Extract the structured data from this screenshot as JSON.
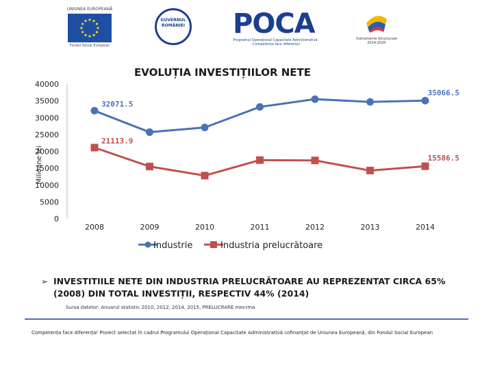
{
  "logos": {
    "eu_top": "UNIUNEA EUROPEANĂ",
    "eu_bottom": "Fondul Social European",
    "gov": "GUVERNUL ROMÂNIEI",
    "poca": "POCA",
    "poca_tagline": "Programul Operațional Capacitate Administrativă · Competența face diferența!",
    "ig": "Instrumente Structurale 2014-2020"
  },
  "colors": {
    "industrie": "#4a72b8",
    "prelucratoare": "#c0504d"
  },
  "chart_data": {
    "type": "line",
    "title": "EVOLUȚIA INVESTIȚIILOR NETE",
    "ylabel": "Milioane lei",
    "xlabel": "",
    "ylim": [
      0,
      40000
    ],
    "yticks": [
      0,
      5000,
      10000,
      15000,
      20000,
      25000,
      30000,
      35000,
      40000
    ],
    "categories": [
      "2008",
      "2009",
      "2010",
      "2011",
      "2012",
      "2013",
      "2014"
    ],
    "series": [
      {
        "name": "Industrie",
        "marker": "circle",
        "values": [
          32071.5,
          25700,
          27100,
          33200,
          35500,
          34700,
          35066.5
        ]
      },
      {
        "name": "Industria prelucrătoare",
        "marker": "square",
        "values": [
          21113.9,
          15500,
          12800,
          17400,
          17300,
          14300,
          15586.5
        ]
      }
    ],
    "data_labels": [
      {
        "series": 0,
        "index": 0,
        "text": "32071.5"
      },
      {
        "series": 0,
        "index": 6,
        "text": "35066.5"
      },
      {
        "series": 1,
        "index": 0,
        "text": "21113.9"
      },
      {
        "series": 1,
        "index": 6,
        "text": "15586.5"
      }
    ],
    "legend_position": "bottom"
  },
  "bullet_text": "INVESTITIILE NETE DIN INDUSTRIA PRELUCRĂTOARE AU REPREZENTAT CIRCA 65% (2008) DIN TOTAL INVESTIȚII, RESPECTIV 44% (2014)",
  "source": "Sursa datelor: Anuarul statistic 2010, 2012, 2014, 2015, PRELUCRARE mecrma",
  "footer": "Competența face diferența! Proiect selectat în cadrul Programului Operațional Capacitate Administrativă cofinanțat de Uniunea Europeană, din Fondul Social European"
}
